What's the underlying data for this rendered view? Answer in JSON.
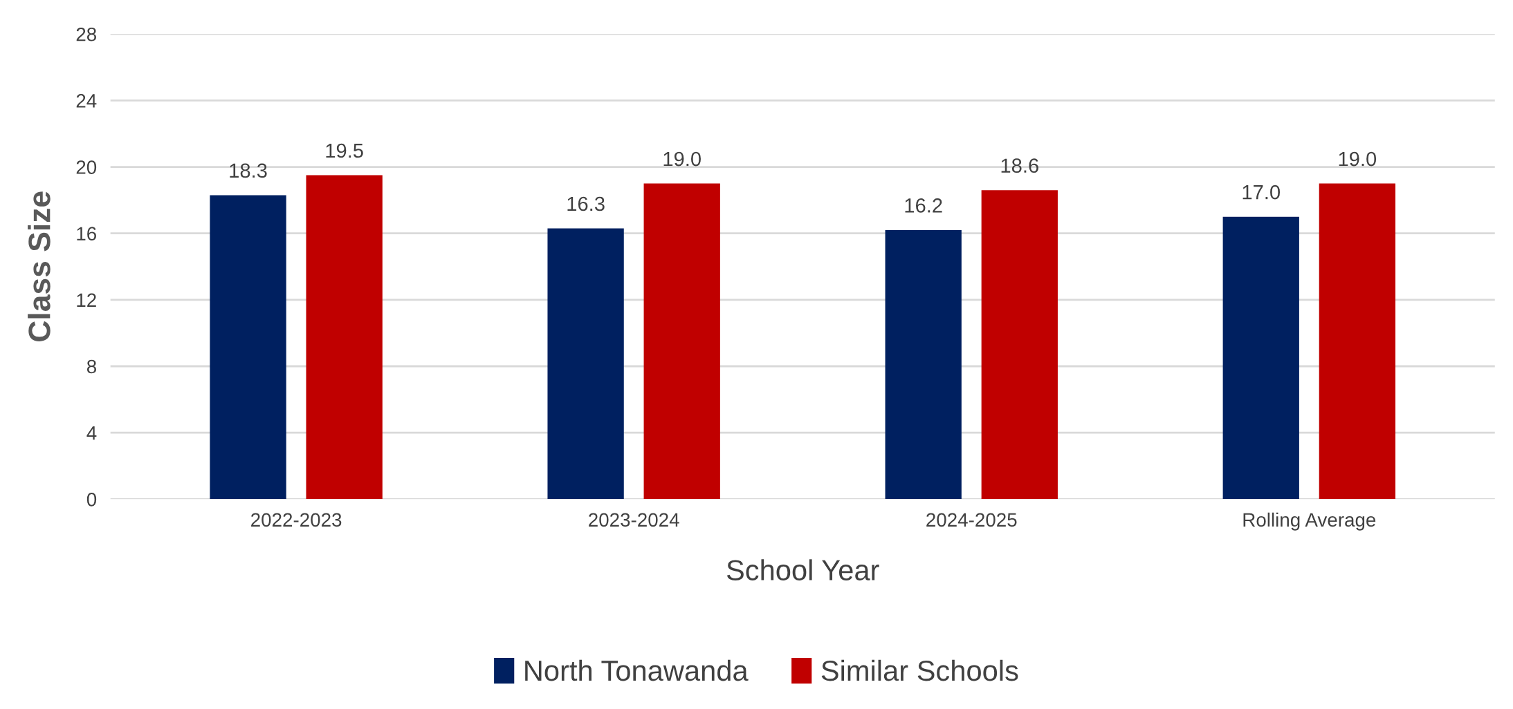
{
  "chart_data": {
    "type": "bar",
    "categories": [
      "2022-2023",
      "2023-2024",
      "2024-2025",
      "Rolling Average"
    ],
    "series": [
      {
        "name": "North Tonawanda",
        "color": "#002060",
        "values": [
          18.3,
          16.3,
          16.2,
          17.0
        ],
        "value_labels": [
          "18.3",
          "16.3",
          "16.2",
          "17.0"
        ]
      },
      {
        "name": "Similar Schools",
        "color": "#c00000",
        "values": [
          19.5,
          19.0,
          18.6,
          19.0
        ],
        "value_labels": [
          "19.5",
          "19.0",
          "18.6",
          "19.0"
        ]
      }
    ],
    "xlabel": "School Year",
    "ylabel": "Class Size",
    "ylim": [
      0,
      28
    ],
    "yticks": [
      0,
      4,
      8,
      12,
      16,
      20,
      24,
      28
    ],
    "grid": "y",
    "legend": "bottom"
  }
}
